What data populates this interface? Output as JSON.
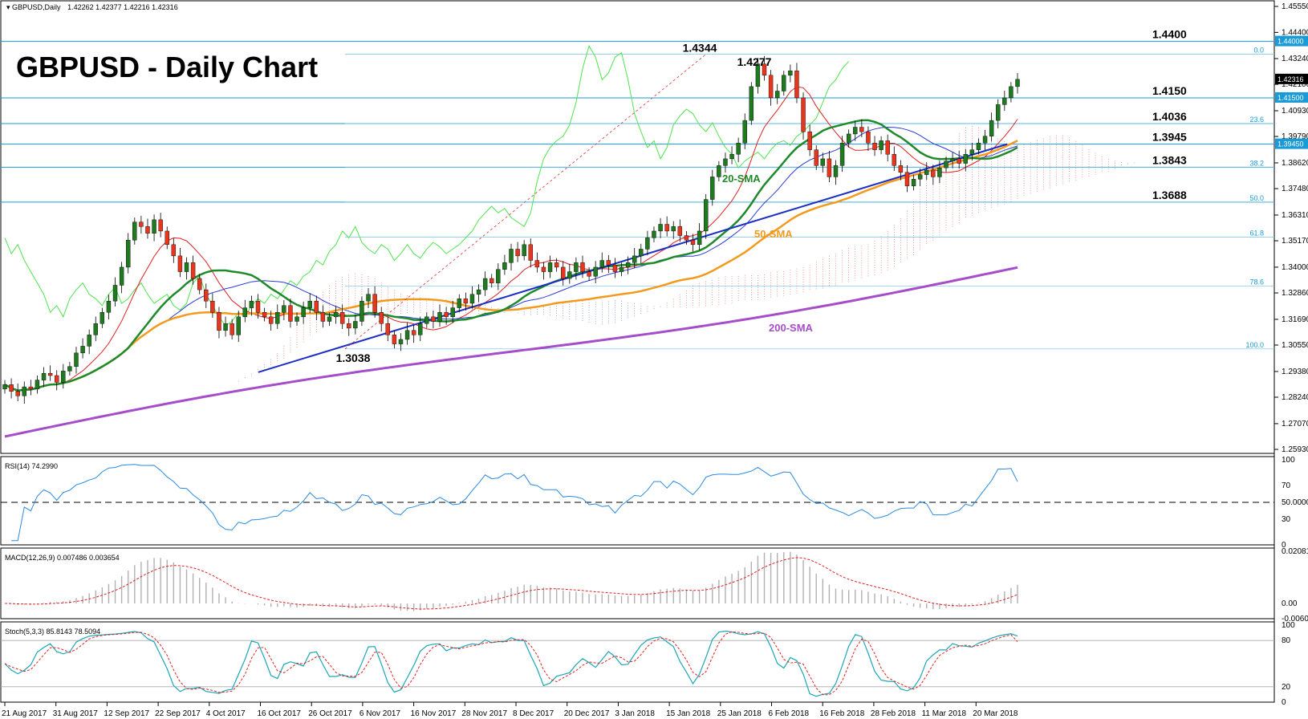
{
  "header": {
    "symbol": "GBPUSD,Daily",
    "ohlc": "1.42262 1.42377 1.42216 1.42316"
  },
  "title": "GBPUSD - Daily Chart",
  "main_price_axis": {
    "ticks": [
      "1.45550",
      "1.44400",
      "1.43240",
      "1.42100",
      "1.40930",
      "1.39790",
      "1.38620",
      "1.37480",
      "1.36310",
      "1.35170",
      "1.34000",
      "1.32860",
      "1.31690",
      "1.30550",
      "1.29380",
      "1.28240",
      "1.27070",
      "1.25930"
    ]
  },
  "price_boxes": [
    {
      "text": "1.44000",
      "kind": "level"
    },
    {
      "text": "1.42316",
      "kind": "current"
    },
    {
      "text": "1.41500",
      "kind": "level"
    },
    {
      "text": "1.39450",
      "kind": "level"
    }
  ],
  "levels": [
    {
      "text": "1.4400",
      "value": 1.44
    },
    {
      "text": "1.4150",
      "value": 1.415
    },
    {
      "text": "1.4036",
      "value": 1.4036
    },
    {
      "text": "1.3945",
      "value": 1.3945
    },
    {
      "text": "1.3843",
      "value": 1.3843
    },
    {
      "text": "1.3688",
      "value": 1.3688
    }
  ],
  "fib_labels": [
    "0.0",
    "23.6",
    "38.2",
    "50.0",
    "61.8",
    "78.6",
    "100.0"
  ],
  "annotations": [
    {
      "text": "1.4344"
    },
    {
      "text": "1.4277"
    },
    {
      "text": "1.3038"
    }
  ],
  "sma_labels": {
    "sma20": "20-SMA",
    "sma50": "50-SMA",
    "sma200": "200-SMA"
  },
  "rsi": {
    "label": "RSI(14) 74.2990",
    "ticks": [
      "100",
      "70",
      "50.0000",
      "30",
      "0"
    ]
  },
  "macd": {
    "label": "MACD(12,26,9) 0.007486 0.003654",
    "ticks": [
      "0.020814",
      "0.00",
      "-0.006088"
    ]
  },
  "stoch": {
    "label": "Stoch(5,3,3) 85.8143 78.5094",
    "ticks": [
      "100",
      "80",
      "20",
      "0"
    ]
  },
  "x_ticks": [
    "21 Aug 2017",
    "31 Aug 2017",
    "12 Sep 2017",
    "22 Sep 2017",
    "4 Oct 2017",
    "16 Oct 2017",
    "26 Oct 2017",
    "6 Nov 2017",
    "16 Nov 2017",
    "28 Nov 2017",
    "8 Dec 2017",
    "20 Dec 2017",
    "3 Jan 2018",
    "15 Jan 2018",
    "25 Jan 2018",
    "6 Feb 2018",
    "16 Feb 2018",
    "28 Feb 2018",
    "11 Mar 2018",
    "20 Mar 2018"
  ],
  "colors": {
    "bull": "#1f7a1f",
    "bear": "#e8361e",
    "sma20": "#1f8a2a",
    "sma50": "#f39a1e",
    "sma200": "#a64dca",
    "trend": "#1c2fc4",
    "level_line": "#1a9ad6",
    "tenkan": "#e02020",
    "kijun": "#2b3bd4",
    "chikou": "#4ee44e"
  },
  "chart_data": {
    "type": "candlestick",
    "title": "GBPUSD - Daily Chart",
    "x_range": [
      "21 Aug 2017",
      "20 Mar 2018"
    ],
    "ylim": [
      1.2593,
      1.4555
    ],
    "trendline": {
      "from": {
        "date": "20 Oct 2017",
        "value": 1.2935
      },
      "to": {
        "date": "26 Mar 2018",
        "value": 1.3945
      }
    },
    "closes": [
      1.288,
      1.285,
      1.283,
      1.287,
      1.286,
      1.29,
      1.293,
      1.292,
      1.289,
      1.294,
      1.296,
      1.302,
      1.305,
      1.31,
      1.315,
      1.32,
      1.325,
      1.332,
      1.34,
      1.352,
      1.36,
      1.358,
      1.355,
      1.361,
      1.356,
      1.35,
      1.345,
      1.338,
      1.342,
      1.335,
      1.33,
      1.325,
      1.32,
      1.312,
      1.315,
      1.31,
      1.318,
      1.322,
      1.325,
      1.32,
      1.318,
      1.315,
      1.32,
      1.323,
      1.316,
      1.318,
      1.322,
      1.325,
      1.32,
      1.316,
      1.318,
      1.32,
      1.315,
      1.313,
      1.316,
      1.325,
      1.328,
      1.32,
      1.315,
      1.31,
      1.306,
      1.308,
      1.312,
      1.31,
      1.315,
      1.318,
      1.316,
      1.32,
      1.318,
      1.322,
      1.326,
      1.324,
      1.328,
      1.33,
      1.335,
      1.333,
      1.339,
      1.342,
      1.348,
      1.345,
      1.35,
      1.343,
      1.34,
      1.338,
      1.342,
      1.34,
      1.335,
      1.338,
      1.342,
      1.338,
      1.336,
      1.34,
      1.343,
      1.341,
      1.338,
      1.34,
      1.342,
      1.345,
      1.348,
      1.353,
      1.356,
      1.359,
      1.356,
      1.358,
      1.354,
      1.352,
      1.35,
      1.356,
      1.37,
      1.38,
      1.385,
      1.388,
      1.39,
      1.395,
      1.405,
      1.42,
      1.43,
      1.425,
      1.415,
      1.418,
      1.425,
      1.427,
      1.415,
      1.4,
      1.392,
      1.385,
      1.388,
      1.38,
      1.385,
      1.395,
      1.399,
      1.402,
      1.4,
      1.395,
      1.392,
      1.396,
      1.39,
      1.385,
      1.382,
      1.376,
      1.379,
      1.381,
      1.383,
      1.38,
      1.384,
      1.387,
      1.388,
      1.386,
      1.39,
      1.392,
      1.395,
      1.398,
      1.405,
      1.412,
      1.415,
      1.42,
      1.4232
    ],
    "sma200_from": 1.265,
    "sma200_to": 1.34,
    "rsi_last": 74.299,
    "macd_last": [
      0.007486,
      0.003654
    ],
    "stoch_last": [
      85.8143,
      78.5094
    ]
  }
}
